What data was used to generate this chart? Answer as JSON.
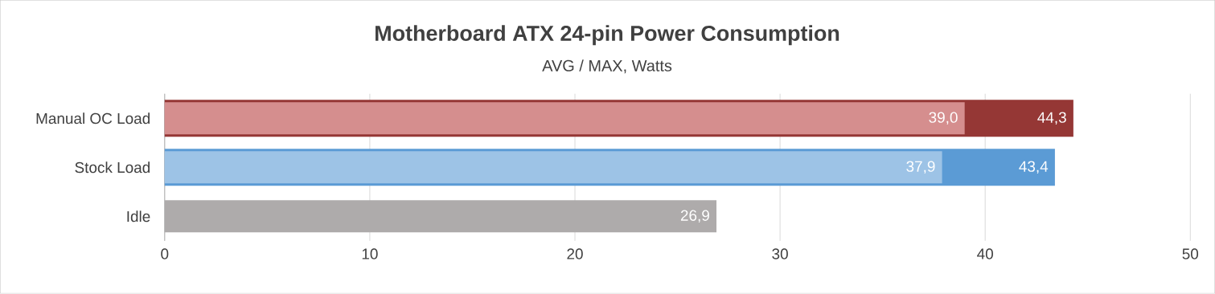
{
  "chart_data": {
    "type": "bar",
    "orientation": "horizontal",
    "title": "Motherboard ATX 24-pin Power Consumption",
    "subtitle": "AVG / MAX, Watts",
    "categories": [
      "Manual OC Load",
      "Stock Load",
      "Idle"
    ],
    "series": [
      {
        "values": [
          44.3,
          43.4,
          null
        ],
        "colors": [
          "#953735",
          "#5b9bd5",
          "#aeabab"
        ],
        "value_labels": [
          "44,3",
          "43,4",
          null
        ]
      },
      {
        "values": [
          39.0,
          37.9,
          26.9
        ],
        "colors": [
          "#d58e8e",
          "#9dc3e6",
          "#aeabab"
        ],
        "value_labels": [
          "39,0",
          "37,9",
          "26,9"
        ]
      }
    ],
    "xlim": [
      0,
      50
    ],
    "xticks": [
      0,
      10,
      20,
      30,
      40,
      50
    ],
    "grid": "x"
  }
}
